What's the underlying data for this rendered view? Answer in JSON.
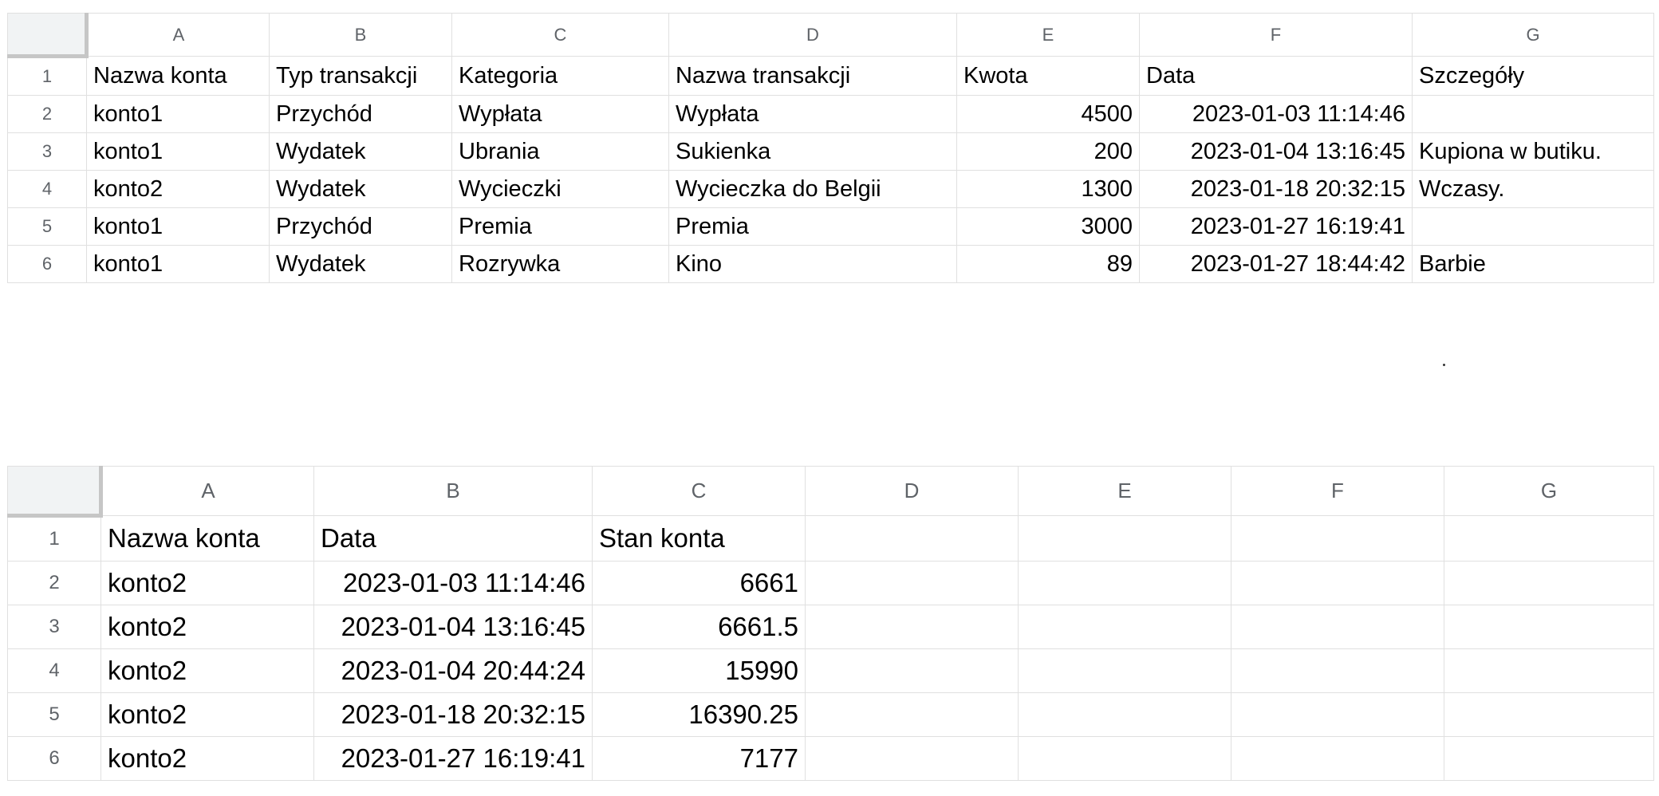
{
  "sheet1": {
    "columns": [
      "A",
      "B",
      "C",
      "D",
      "E",
      "F",
      "G"
    ],
    "rows": [
      {
        "n": "1",
        "a": "Nazwa konta",
        "b": "Typ transakcji",
        "c": "Kategoria",
        "d": "Nazwa transakcji",
        "e": "Kwota",
        "f": "Data",
        "g": "Szczegóły"
      },
      {
        "n": "2",
        "a": "konto1",
        "b": "Przychód",
        "c": "Wypłata",
        "d": "Wypłata",
        "e": "4500",
        "f": "2023-01-03 11:14:46",
        "g": ""
      },
      {
        "n": "3",
        "a": "konto1",
        "b": "Wydatek",
        "c": "Ubrania",
        "d": "Sukienka",
        "e": "200",
        "f": "2023-01-04 13:16:45",
        "g": "Kupiona w butiku."
      },
      {
        "n": "4",
        "a": "konto2",
        "b": "Wydatek",
        "c": "Wycieczki",
        "d": "Wycieczka do Belgii",
        "e": "1300",
        "f": "2023-01-18 20:32:15",
        "g": "Wczasy."
      },
      {
        "n": "5",
        "a": "konto1",
        "b": "Przychód",
        "c": "Premia",
        "d": "Premia",
        "e": "3000",
        "f": "2023-01-27 16:19:41",
        "g": ""
      },
      {
        "n": "6",
        "a": "konto1",
        "b": "Wydatek",
        "c": "Rozrywka",
        "d": "Kino",
        "e": "89",
        "f": "2023-01-27 18:44:42",
        "g": "Barbie"
      }
    ]
  },
  "sheet2": {
    "columns": [
      "A",
      "B",
      "C",
      "D",
      "E",
      "F",
      "G"
    ],
    "rows": [
      {
        "n": "1",
        "a": "Nazwa konta",
        "b": "Data",
        "c": "Stan konta"
      },
      {
        "n": "2",
        "a": "konto2",
        "b": "2023-01-03 11:14:46",
        "c": "6661"
      },
      {
        "n": "3",
        "a": "konto2",
        "b": "2023-01-04 13:16:45",
        "c": "6661.5"
      },
      {
        "n": "4",
        "a": "konto2",
        "b": "2023-01-04 20:44:24",
        "c": "15990"
      },
      {
        "n": "5",
        "a": "konto2",
        "b": "2023-01-18 20:32:15",
        "c": "16390.25"
      },
      {
        "n": "6",
        "a": "konto2",
        "b": "2023-01-27 16:19:41",
        "c": "7177"
      }
    ]
  }
}
